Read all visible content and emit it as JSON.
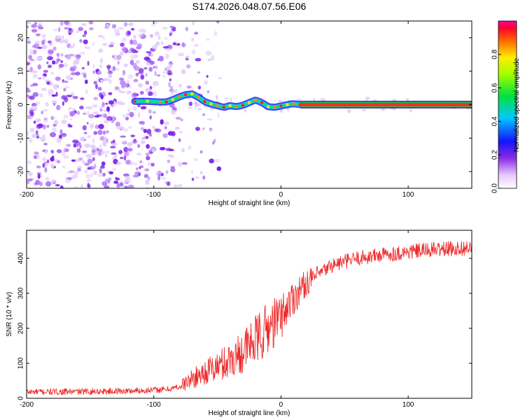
{
  "title": "S174.2026.048.07.56.E06",
  "chart_data": [
    {
      "type": "heatmap",
      "title": "S174.2026.048.07.56.E06",
      "xlabel": "Height of straight line (km)",
      "ylabel": "Frequency (Hz)",
      "xlim": [
        -200,
        150
      ],
      "ylim": [
        -25,
        25
      ],
      "xticks": [
        -200,
        -100,
        0,
        100
      ],
      "yticks": [
        -20,
        -10,
        0,
        10,
        20
      ],
      "colorbar": {
        "label": "Normalized spectral amplitude",
        "range": [
          0,
          1
        ],
        "ticks": [
          0.0,
          0.2,
          0.4,
          0.6,
          0.8
        ]
      },
      "noise_region": {
        "x": [
          -200,
          -78
        ],
        "description_value": "scattered low-amplitude speckle"
      },
      "ridge": {
        "x": [
          -115,
          -105,
          -95,
          -90,
          -85,
          -80,
          -75,
          -70,
          -65,
          -60,
          -55,
          -50,
          -45,
          -40,
          -35,
          -30,
          -25,
          -20,
          -15,
          -10,
          -5,
          0,
          5,
          10,
          15,
          150
        ],
        "frequency": [
          1.0,
          1.0,
          0.8,
          0.8,
          1.5,
          2.3,
          3.0,
          3.2,
          2.2,
          0.9,
          0.2,
          -0.3,
          -0.8,
          -0.3,
          -0.6,
          -0.2,
          0.6,
          1.4,
          0.6,
          -0.6,
          -0.8,
          -0.4,
          0.0,
          0.3,
          0.0,
          0.0
        ]
      }
    },
    {
      "type": "line",
      "xlabel": "Height of straight line (km)",
      "ylabel": "SNR (10 * v/v)",
      "xlim": [
        -200,
        150
      ],
      "ylim": [
        0,
        480
      ],
      "xticks": [
        -200,
        -100,
        0,
        100
      ],
      "yticks": [
        0,
        100,
        200,
        300,
        400
      ],
      "series": [
        {
          "name": "SNR",
          "color": "#ef2b2b",
          "x": [
            -200,
            -160,
            -120,
            -90,
            -80,
            -70,
            -60,
            -50,
            -40,
            -30,
            -20,
            -10,
            0,
            10,
            20,
            30,
            40,
            50,
            60,
            80,
            100,
            120,
            150
          ],
          "y": [
            18,
            19,
            21,
            25,
            33,
            55,
            75,
            90,
            110,
            135,
            165,
            200,
            235,
            290,
            330,
            355,
            380,
            390,
            400,
            410,
            418,
            425,
            430
          ]
        }
      ]
    }
  ],
  "colors": {
    "noise": "#7a2bff",
    "line": "#ef2b2b",
    "axes": "#000000"
  }
}
